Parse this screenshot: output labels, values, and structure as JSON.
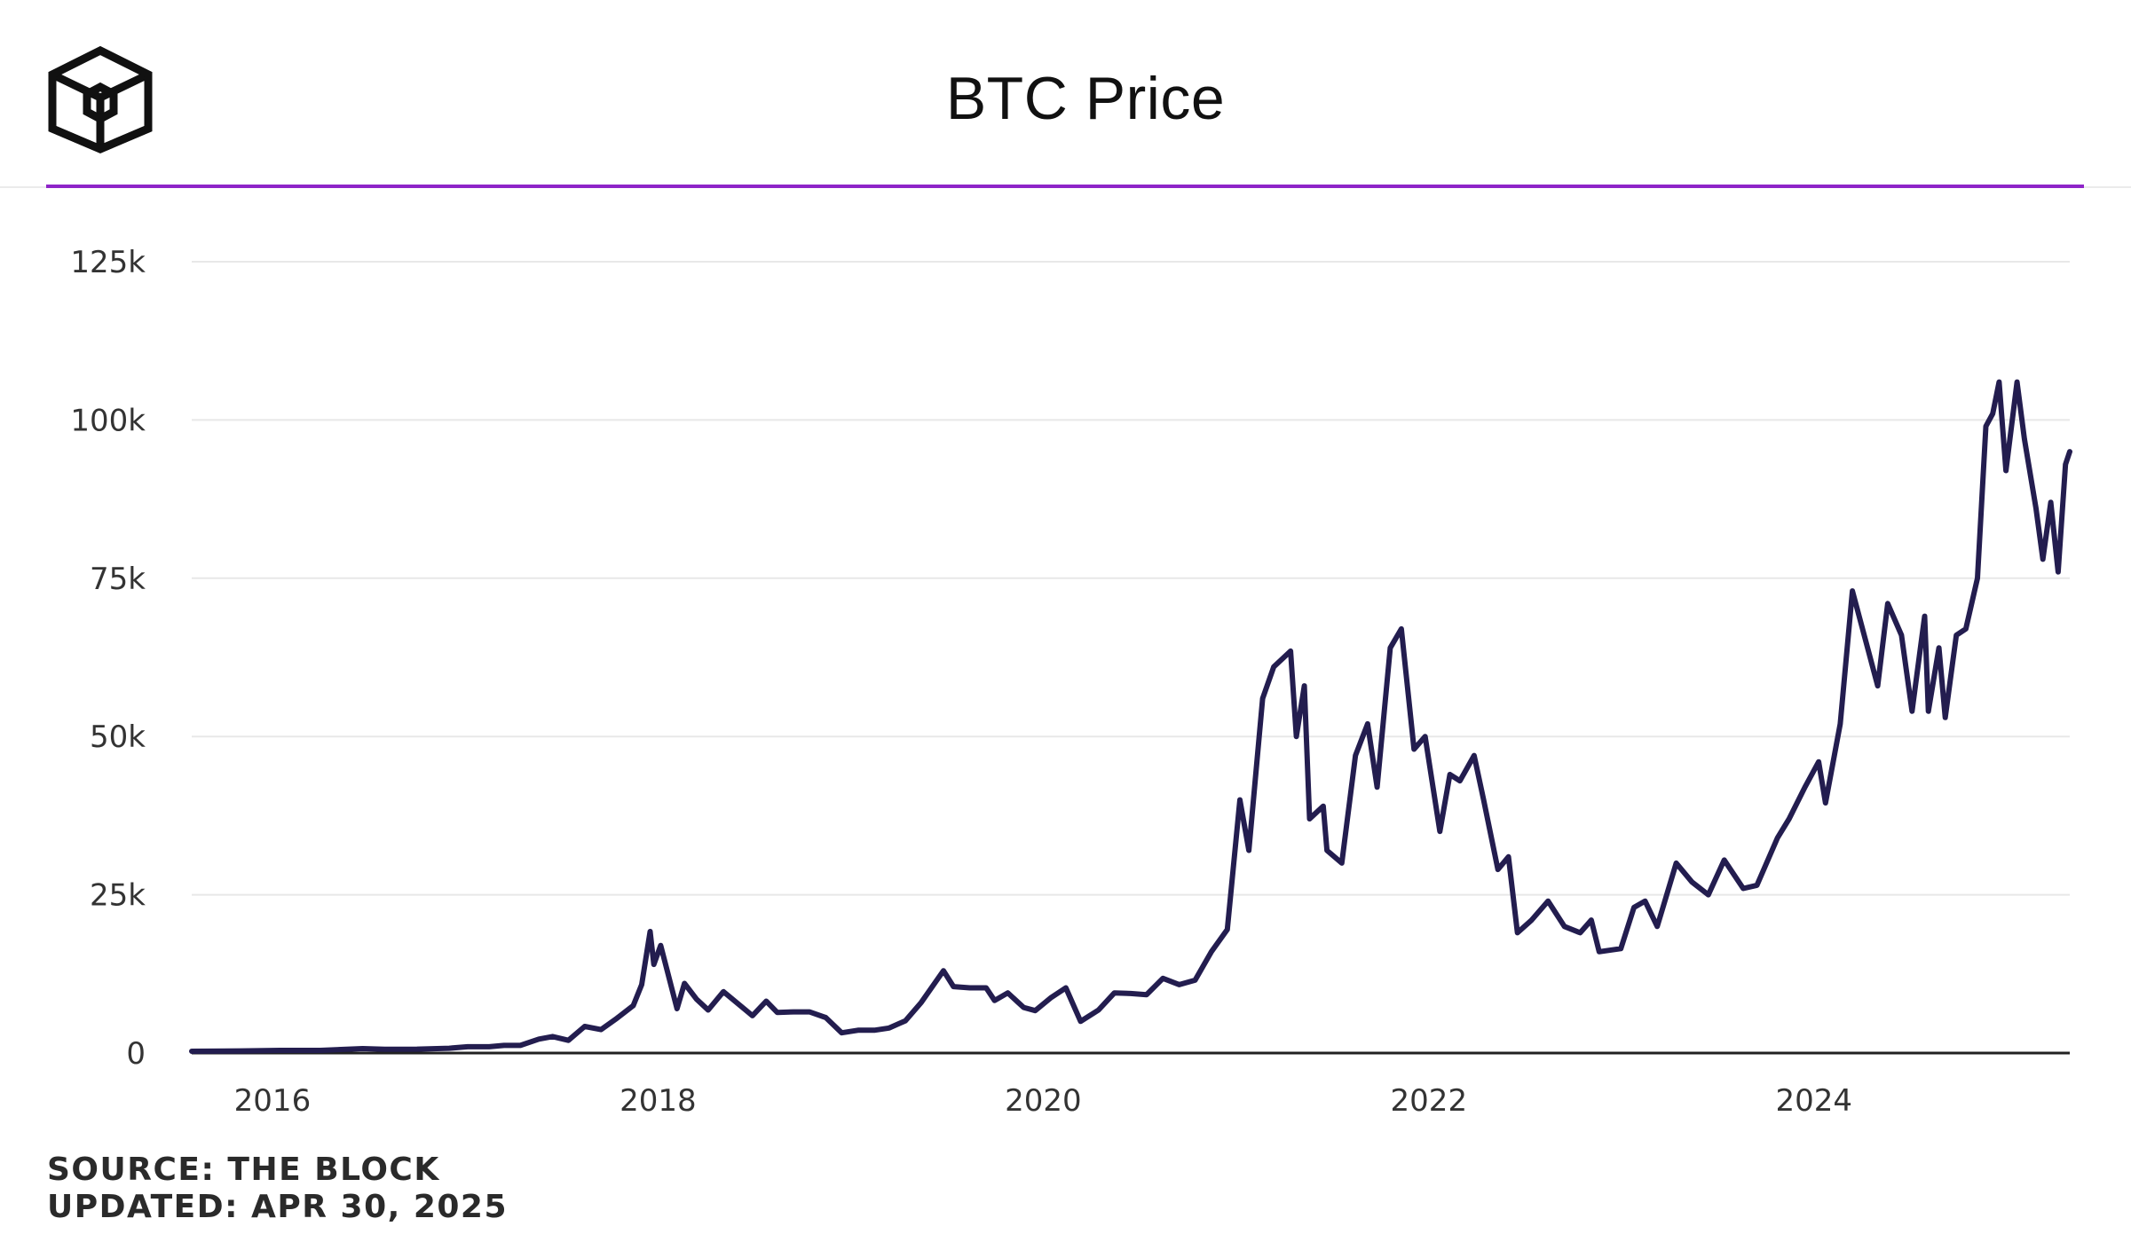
{
  "header": {
    "logo_icon": "the-block-cube-logo-icon"
  },
  "colors": {
    "accent": "#8e24c8",
    "series": "#231d4f",
    "grid": "#e8e8e8",
    "axis": "#222222"
  },
  "footer": {
    "source": "SOURCE: THE BLOCK",
    "updated": "UPDATED: APR 30, 2025"
  },
  "chart_data": {
    "type": "line",
    "title": "BTC Price",
    "xlabel": "",
    "ylabel": "",
    "ylim": [
      0,
      125000
    ],
    "xlim": [
      "2015-08-01",
      "2025-04-30"
    ],
    "grid": true,
    "legend": "none",
    "y_ticks": [
      {
        "value": 0,
        "label": "0"
      },
      {
        "value": 25000,
        "label": "25k"
      },
      {
        "value": 50000,
        "label": "50k"
      },
      {
        "value": 75000,
        "label": "75k"
      },
      {
        "value": 100000,
        "label": "100k"
      },
      {
        "value": 125000,
        "label": "125k"
      }
    ],
    "x_ticks": [
      {
        "value": "2016-01-01",
        "label": "2016"
      },
      {
        "value": "2018-01-01",
        "label": "2018"
      },
      {
        "value": "2020-01-01",
        "label": "2020"
      },
      {
        "value": "2022-01-01",
        "label": "2022"
      },
      {
        "value": "2024-01-01",
        "label": "2024"
      }
    ],
    "series": [
      {
        "points": [
          [
            "2015-08-01",
            280
          ],
          [
            "2015-11-01",
            330
          ],
          [
            "2016-01-15",
            420
          ],
          [
            "2016-04-01",
            420
          ],
          [
            "2016-06-20",
            700
          ],
          [
            "2016-08-01",
            600
          ],
          [
            "2016-10-01",
            610
          ],
          [
            "2016-12-01",
            750
          ],
          [
            "2017-01-05",
            1000
          ],
          [
            "2017-02-15",
            1000
          ],
          [
            "2017-03-15",
            1200
          ],
          [
            "2017-04-15",
            1200
          ],
          [
            "2017-05-20",
            2200
          ],
          [
            "2017-06-15",
            2600
          ],
          [
            "2017-07-15",
            2000
          ],
          [
            "2017-08-15",
            4200
          ],
          [
            "2017-09-15",
            3700
          ],
          [
            "2017-10-15",
            5500
          ],
          [
            "2017-11-15",
            7500
          ],
          [
            "2017-12-01",
            10800
          ],
          [
            "2017-12-17",
            19200
          ],
          [
            "2017-12-24",
            14000
          ],
          [
            "2018-01-06",
            17000
          ],
          [
            "2018-02-06",
            7000
          ],
          [
            "2018-02-20",
            11000
          ],
          [
            "2018-03-15",
            8500
          ],
          [
            "2018-04-06",
            6800
          ],
          [
            "2018-05-05",
            9700
          ],
          [
            "2018-06-29",
            5900
          ],
          [
            "2018-07-25",
            8200
          ],
          [
            "2018-08-15",
            6400
          ],
          [
            "2018-09-15",
            6500
          ],
          [
            "2018-10-15",
            6500
          ],
          [
            "2018-11-15",
            5600
          ],
          [
            "2018-12-15",
            3200
          ],
          [
            "2019-01-15",
            3600
          ],
          [
            "2019-02-15",
            3600
          ],
          [
            "2019-03-15",
            3950
          ],
          [
            "2019-04-15",
            5100
          ],
          [
            "2019-05-15",
            8000
          ],
          [
            "2019-06-26",
            13000
          ],
          [
            "2019-07-15",
            10500
          ],
          [
            "2019-08-15",
            10300
          ],
          [
            "2019-09-15",
            10300
          ],
          [
            "2019-10-01",
            8300
          ],
          [
            "2019-10-26",
            9500
          ],
          [
            "2019-11-25",
            7200
          ],
          [
            "2019-12-17",
            6700
          ],
          [
            "2020-01-15",
            8700
          ],
          [
            "2020-02-13",
            10300
          ],
          [
            "2020-03-12",
            5000
          ],
          [
            "2020-04-15",
            6800
          ],
          [
            "2020-05-15",
            9500
          ],
          [
            "2020-06-15",
            9400
          ],
          [
            "2020-07-15",
            9200
          ],
          [
            "2020-08-15",
            11800
          ],
          [
            "2020-09-15",
            10800
          ],
          [
            "2020-10-15",
            11500
          ],
          [
            "2020-11-15",
            16000
          ],
          [
            "2020-12-15",
            19500
          ],
          [
            "2021-01-08",
            40000
          ],
          [
            "2021-01-25",
            32000
          ],
          [
            "2021-02-20",
            56000
          ],
          [
            "2021-03-13",
            61000
          ],
          [
            "2021-04-14",
            63500
          ],
          [
            "2021-04-25",
            50000
          ],
          [
            "2021-05-10",
            58000
          ],
          [
            "2021-05-20",
            37000
          ],
          [
            "2021-06-15",
            39000
          ],
          [
            "2021-06-22",
            32000
          ],
          [
            "2021-07-20",
            30000
          ],
          [
            "2021-08-15",
            47000
          ],
          [
            "2021-09-07",
            52000
          ],
          [
            "2021-09-25",
            42000
          ],
          [
            "2021-10-20",
            64000
          ],
          [
            "2021-11-10",
            67000
          ],
          [
            "2021-12-04",
            48000
          ],
          [
            "2021-12-25",
            50000
          ],
          [
            "2022-01-22",
            35000
          ],
          [
            "2022-02-10",
            44000
          ],
          [
            "2022-03-01",
            43000
          ],
          [
            "2022-03-28",
            47000
          ],
          [
            "2022-04-15",
            40000
          ],
          [
            "2022-05-12",
            29000
          ],
          [
            "2022-06-01",
            31000
          ],
          [
            "2022-06-18",
            19000
          ],
          [
            "2022-07-15",
            21000
          ],
          [
            "2022-08-15",
            24000
          ],
          [
            "2022-09-15",
            20000
          ],
          [
            "2022-10-15",
            19000
          ],
          [
            "2022-11-05",
            21000
          ],
          [
            "2022-11-20",
            16000
          ],
          [
            "2022-12-31",
            16500
          ],
          [
            "2023-01-25",
            23000
          ],
          [
            "2023-02-15",
            24000
          ],
          [
            "2023-03-10",
            20000
          ],
          [
            "2023-04-15",
            30000
          ],
          [
            "2023-05-15",
            27000
          ],
          [
            "2023-06-15",
            25000
          ],
          [
            "2023-07-15",
            30500
          ],
          [
            "2023-08-20",
            26000
          ],
          [
            "2023-09-15",
            26500
          ],
          [
            "2023-10-24",
            34000
          ],
          [
            "2023-11-15",
            37000
          ],
          [
            "2023-12-15",
            42000
          ],
          [
            "2024-01-10",
            46000
          ],
          [
            "2024-01-23",
            39500
          ],
          [
            "2024-02-20",
            52000
          ],
          [
            "2024-03-14",
            73000
          ],
          [
            "2024-04-15",
            63000
          ],
          [
            "2024-05-01",
            58000
          ],
          [
            "2024-05-20",
            71000
          ],
          [
            "2024-06-15",
            66000
          ],
          [
            "2024-07-05",
            54000
          ],
          [
            "2024-07-29",
            69000
          ],
          [
            "2024-08-05",
            54000
          ],
          [
            "2024-08-25",
            64000
          ],
          [
            "2024-09-06",
            53000
          ],
          [
            "2024-09-27",
            66000
          ],
          [
            "2024-10-15",
            67000
          ],
          [
            "2024-11-06",
            75000
          ],
          [
            "2024-11-22",
            99000
          ],
          [
            "2024-12-05",
            101000
          ],
          [
            "2024-12-17",
            106000
          ],
          [
            "2024-12-30",
            92000
          ],
          [
            "2025-01-20",
            106000
          ],
          [
            "2025-02-03",
            97000
          ],
          [
            "2025-02-25",
            86000
          ],
          [
            "2025-03-10",
            78000
          ],
          [
            "2025-03-25",
            87000
          ],
          [
            "2025-04-08",
            76000
          ],
          [
            "2025-04-22",
            93000
          ],
          [
            "2025-04-30",
            95000
          ]
        ]
      }
    ]
  }
}
